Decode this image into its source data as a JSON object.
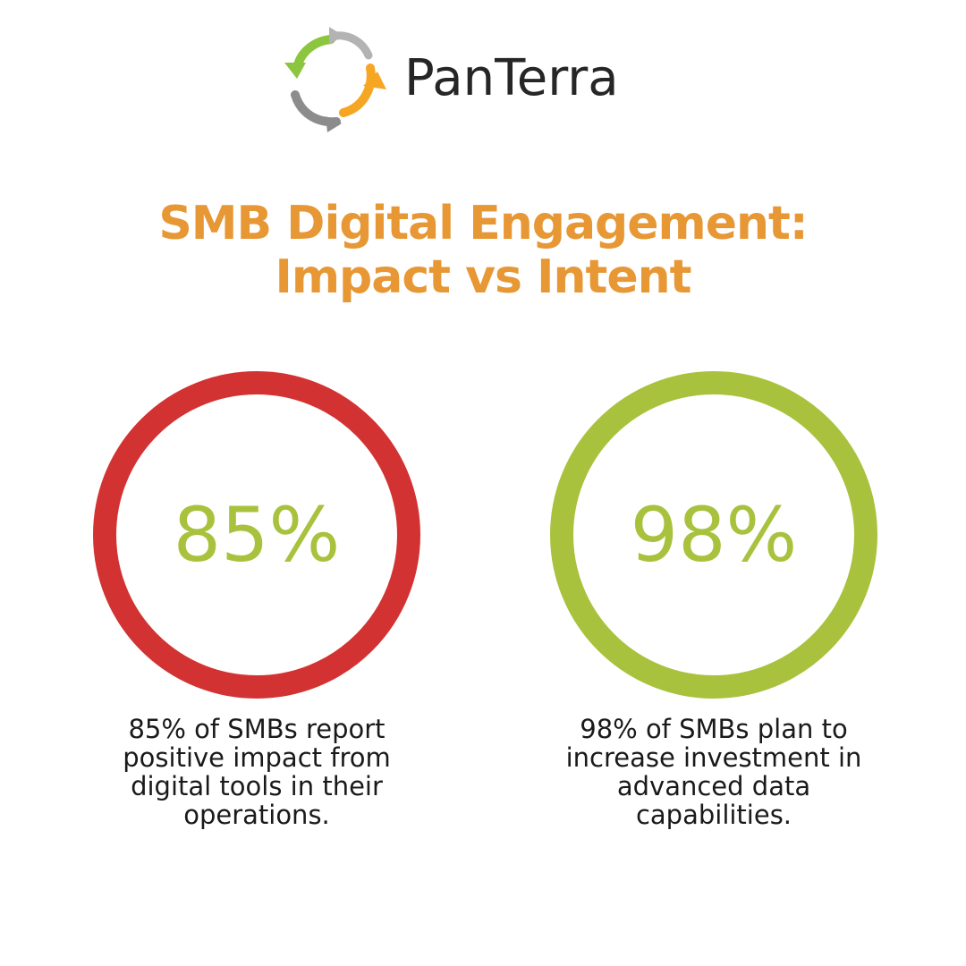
{
  "brand": {
    "name": "PanTerra",
    "logo_icon": "circular-arrows-logo-icon",
    "colors": {
      "green": "#8cc63f",
      "orange": "#f5a623",
      "gray": "#8c8c8c",
      "text": "#262626"
    }
  },
  "title": {
    "line1": "SMB Digital Engagement:",
    "line2": "Impact vs Intent",
    "color": "#e79733"
  },
  "stats": [
    {
      "value": "85%",
      "ring_color": "#d33232",
      "value_color": "#a8c23d",
      "caption_lines": [
        "85% of SMBs report",
        "positive impact from",
        "digital tools in their",
        "operations."
      ]
    },
    {
      "value": "98%",
      "ring_color": "#a8c23d",
      "value_color": "#a8c23d",
      "caption_lines": [
        "98% of SMBs plan to",
        "increase investment in",
        "advanced data",
        "capabilities."
      ]
    }
  ]
}
